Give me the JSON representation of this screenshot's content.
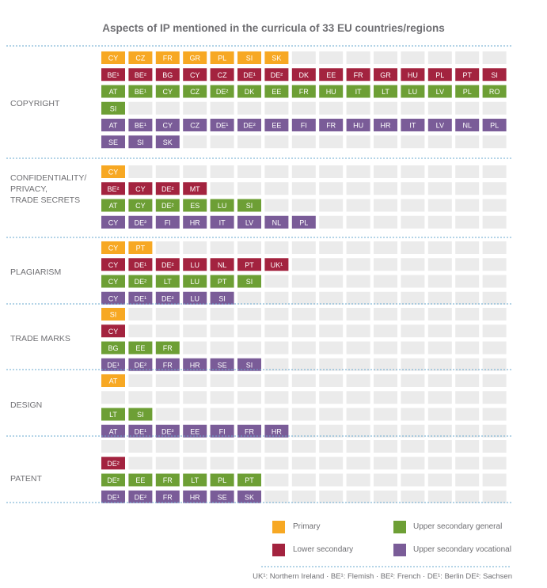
{
  "title": "Aspects of IP mentioned in the curricula of 33 EU countries/regions",
  "colors": {
    "primary": "#f7a823",
    "lower_secondary": "#a3233f",
    "upper_secondary_general": "#6d9f35",
    "upper_secondary_vocational": "#7a5c98",
    "empty_cell": "#ebebeb",
    "separator": "#6aa9cf"
  },
  "legend": [
    {
      "key": "primary",
      "label": "Primary"
    },
    {
      "key": "upper_secondary_general",
      "label": "Upper secondary general"
    },
    {
      "key": "lower_secondary",
      "label": "Lower secondary"
    },
    {
      "key": "upper_secondary_vocational",
      "label": "Upper secondary vocational"
    }
  ],
  "footnote": "UK¹: Northern Ireland · BE¹: Flemish · BE²: French · DE¹: Berlin DE²: Sachsen",
  "chart_data": {
    "type": "table",
    "grid_columns": 15,
    "sections": [
      {
        "name": "COPYRIGHT",
        "rows": [
          {
            "level": "primary",
            "items": [
              "CY",
              "CZ",
              "FR",
              "GR",
              "PL",
              "SI",
              "SK"
            ]
          },
          {
            "level": "lower_secondary",
            "items": [
              "BE¹",
              "BE²",
              "BG",
              "CY",
              "CZ",
              "DE¹",
              "DE²",
              "DK",
              "EE",
              "FR",
              "GR",
              "HU",
              "PL",
              "PT",
              "SI"
            ]
          },
          {
            "level": "upper_secondary_general",
            "items": [
              "AT",
              "BE¹",
              "CY",
              "CZ",
              "DE²",
              "DK",
              "EE",
              "FR",
              "HU",
              "IT",
              "LT",
              "LU",
              "LV",
              "PL",
              "RO",
              "SI"
            ]
          },
          {
            "level": "upper_secondary_vocational",
            "items": [
              "AT",
              "BE¹",
              "CY",
              "CZ",
              "DE¹",
              "DE²",
              "EE",
              "FI",
              "FR",
              "HU",
              "HR",
              "IT",
              "LV",
              "NL",
              "PL",
              "SE",
              "SI",
              "SK"
            ]
          }
        ]
      },
      {
        "name": "CONFIDENTIALITY/ PRIVACY, TRADE SECRETS",
        "rows": [
          {
            "level": "primary",
            "items": [
              "CY"
            ]
          },
          {
            "level": "lower_secondary",
            "items": [
              "BE²",
              "CY",
              "DE²",
              "MT"
            ]
          },
          {
            "level": "upper_secondary_general",
            "items": [
              "AT",
              "CY",
              "DE²",
              "ES",
              "LU",
              "SI"
            ]
          },
          {
            "level": "upper_secondary_vocational",
            "items": [
              "CY",
              "DE²",
              "FI",
              "HR",
              "IT",
              "LV",
              "NL",
              "PL"
            ]
          }
        ]
      },
      {
        "name": "PLAGIARISM",
        "rows": [
          {
            "level": "primary",
            "items": [
              "CY",
              "PT"
            ]
          },
          {
            "level": "lower_secondary",
            "items": [
              "CY",
              "DE¹",
              "DE²",
              "LU",
              "NL",
              "PT",
              "UK¹"
            ]
          },
          {
            "level": "upper_secondary_general",
            "items": [
              "CY",
              "DE²",
              "LT",
              "LU",
              "PT",
              "SI"
            ]
          },
          {
            "level": "upper_secondary_vocational",
            "items": [
              "CY",
              "DE¹",
              "DE²",
              "LU",
              "SI"
            ]
          }
        ]
      },
      {
        "name": "TRADE MARKS",
        "rows": [
          {
            "level": "primary",
            "items": [
              "SI"
            ]
          },
          {
            "level": "lower_secondary",
            "items": [
              "CY"
            ]
          },
          {
            "level": "upper_secondary_general",
            "items": [
              "BG",
              "EE",
              "FR"
            ]
          },
          {
            "level": "upper_secondary_vocational",
            "items": [
              "DE¹",
              "DE²",
              "FR",
              "HR",
              "SE",
              "SI"
            ]
          }
        ]
      },
      {
        "name": "DESIGN",
        "rows": [
          {
            "level": "primary",
            "items": [
              "AT"
            ]
          },
          {
            "level": "lower_secondary",
            "items": []
          },
          {
            "level": "upper_secondary_general",
            "items": [
              "LT",
              "SI"
            ]
          },
          {
            "level": "upper_secondary_vocational",
            "items": [
              "AT",
              "DE¹",
              "DE²",
              "EE",
              "FI",
              "FR",
              "HR"
            ]
          }
        ]
      },
      {
        "name": "PATENT",
        "rows": [
          {
            "level": "primary",
            "items": []
          },
          {
            "level": "lower_secondary",
            "items": [
              "DE²"
            ]
          },
          {
            "level": "upper_secondary_general",
            "items": [
              "DE²",
              "EE",
              "FR",
              "LT",
              "PL",
              "PT"
            ]
          },
          {
            "level": "upper_secondary_vocational",
            "items": [
              "DE¹",
              "DE²",
              "FR",
              "HR",
              "SE",
              "SK"
            ]
          }
        ]
      }
    ]
  }
}
